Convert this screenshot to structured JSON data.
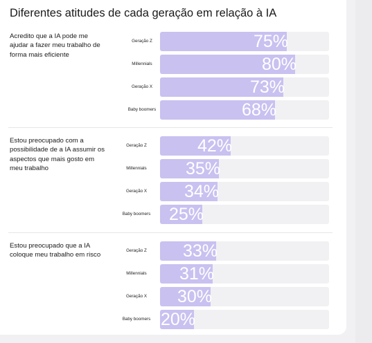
{
  "title": "Diferentes atitudes de cada geração em relação à IA",
  "colors": {
    "fill": "#c9c1f0",
    "track": "#f1f1f3",
    "label": "#ffffff"
  },
  "chart_data": {
    "type": "bar",
    "orientation": "horizontal",
    "xlim": [
      0,
      100
    ],
    "groups": [
      {
        "question": "Acredito que a IA pode me ajudar a fazer meu trabalho de forma mais eficiente",
        "bars": [
          {
            "generation": "Geração Z",
            "value": 75,
            "label": "75%"
          },
          {
            "generation": "Millennials",
            "value": 80,
            "label": "80%"
          },
          {
            "generation": "Geração X",
            "value": 73,
            "label": "73%"
          },
          {
            "generation": "Baby boomers",
            "value": 68,
            "label": "68%"
          }
        ]
      },
      {
        "question": "Estou preocupado com a possibilidade de a IA assumir os aspectos que mais gosto em meu trabalho",
        "bars": [
          {
            "generation": "Geração Z",
            "value": 42,
            "label": "42%"
          },
          {
            "generation": "Millennials",
            "value": 35,
            "label": "35%"
          },
          {
            "generation": "Geração X",
            "value": 34,
            "label": "34%"
          },
          {
            "generation": "Baby boomers",
            "value": 25,
            "label": "25%"
          }
        ]
      },
      {
        "question": "Estou preocupado que a IA coloque meu trabalho em risco",
        "bars": [
          {
            "generation": "Geração Z",
            "value": 33,
            "label": "33%"
          },
          {
            "generation": "Millennials",
            "value": 31,
            "label": "31%"
          },
          {
            "generation": "Geração X",
            "value": 30,
            "label": "30%"
          },
          {
            "generation": "Baby boomers",
            "value": 20,
            "label": "20%"
          }
        ]
      }
    ]
  }
}
